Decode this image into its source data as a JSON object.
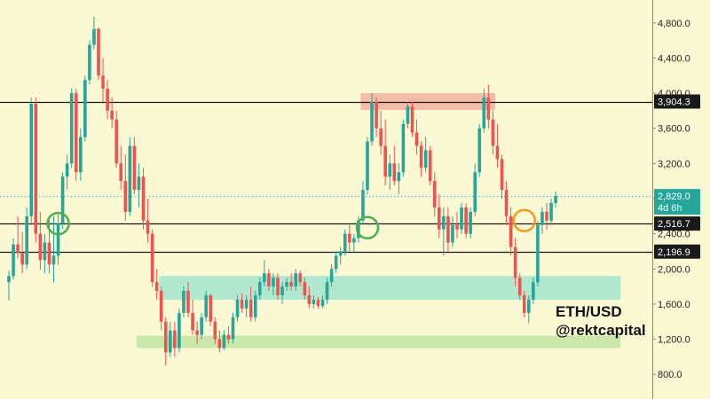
{
  "chart_data": {
    "type": "candlestick",
    "symbol": "ETH/USD",
    "author": "@rektcapital",
    "y_ticks": [
      800,
      1200,
      1600,
      2000,
      2400,
      2800,
      3200,
      3600,
      4000,
      4400,
      4800
    ],
    "y_tick_labels": [
      "800.0",
      "1,200.0",
      "1,600.0",
      "2,000.0",
      "2,400.0",
      "2,800.0",
      "3,200.0",
      "3,600.0",
      "4,000.0",
      "4,400.0",
      "4,800.0"
    ],
    "ylim": [
      520,
      5060
    ],
    "current_price": {
      "value": 2829.0,
      "label": "2,829.0",
      "countdown": "4d 6h"
    },
    "horizontal_levels": [
      {
        "value": 3904.3,
        "label": "3,904.3"
      },
      {
        "value": 2516.7,
        "label": "2,516.7"
      },
      {
        "value": 2196.9,
        "label": "2,196.9"
      }
    ],
    "zones": [
      {
        "type": "resistance",
        "from": 3810,
        "to": 4000,
        "start_index": 79,
        "end_index": 108,
        "color": "#f3b5a2"
      },
      {
        "type": "support",
        "from": 1650,
        "to": 1920,
        "start_index": 34,
        "end_index": 136,
        "color": "#a8e6cf"
      },
      {
        "type": "support",
        "from": 1100,
        "to": 1240,
        "start_index": 29,
        "end_index": 136,
        "color": "#c3e6a5"
      }
    ],
    "circles": [
      {
        "index": 11,
        "price": 2516.7,
        "color": "#4caf50"
      },
      {
        "index": 80,
        "price": 2470,
        "color": "#4caf50"
      },
      {
        "index": 115,
        "price": 2550,
        "color": "#f29b1f"
      }
    ],
    "candles": [
      {
        "o": 1850,
        "h": 1980,
        "l": 1640,
        "c": 1920
      },
      {
        "o": 1920,
        "h": 2350,
        "l": 1880,
        "c": 2280
      },
      {
        "o": 2280,
        "h": 2600,
        "l": 2120,
        "c": 2180
      },
      {
        "o": 2180,
        "h": 2420,
        "l": 1950,
        "c": 2050
      },
      {
        "o": 2050,
        "h": 2700,
        "l": 2000,
        "c": 2600
      },
      {
        "o": 2600,
        "h": 3950,
        "l": 2500,
        "c": 3880
      },
      {
        "o": 3880,
        "h": 3950,
        "l": 2300,
        "c": 2400
      },
      {
        "o": 2400,
        "h": 2650,
        "l": 1990,
        "c": 2100
      },
      {
        "o": 2100,
        "h": 2400,
        "l": 1950,
        "c": 2300
      },
      {
        "o": 2300,
        "h": 2550,
        "l": 1950,
        "c": 2050
      },
      {
        "o": 2050,
        "h": 2600,
        "l": 1850,
        "c": 2150
      },
      {
        "o": 2150,
        "h": 2620,
        "l": 2050,
        "c": 2520
      },
      {
        "o": 2520,
        "h": 3100,
        "l": 2450,
        "c": 3050
      },
      {
        "o": 3050,
        "h": 3300,
        "l": 2900,
        "c": 3200
      },
      {
        "o": 3200,
        "h": 4050,
        "l": 3150,
        "c": 4000
      },
      {
        "o": 4000,
        "h": 4050,
        "l": 3000,
        "c": 3100
      },
      {
        "o": 3100,
        "h": 3600,
        "l": 3000,
        "c": 3500
      },
      {
        "o": 3500,
        "h": 4200,
        "l": 3450,
        "c": 4150
      },
      {
        "o": 4150,
        "h": 4600,
        "l": 4100,
        "c": 4550
      },
      {
        "o": 4550,
        "h": 4870,
        "l": 4500,
        "c": 4730
      },
      {
        "o": 4730,
        "h": 4750,
        "l": 4150,
        "c": 4200
      },
      {
        "o": 4200,
        "h": 4400,
        "l": 3900,
        "c": 4050
      },
      {
        "o": 4050,
        "h": 4150,
        "l": 3700,
        "c": 3800
      },
      {
        "o": 3800,
        "h": 3950,
        "l": 3600,
        "c": 3700
      },
      {
        "o": 3700,
        "h": 3800,
        "l": 3150,
        "c": 3200
      },
      {
        "o": 3200,
        "h": 3400,
        "l": 2900,
        "c": 3000
      },
      {
        "o": 3000,
        "h": 3300,
        "l": 2550,
        "c": 2650
      },
      {
        "o": 2650,
        "h": 3500,
        "l": 2600,
        "c": 3400
      },
      {
        "o": 3400,
        "h": 3500,
        "l": 2850,
        "c": 2900
      },
      {
        "o": 2900,
        "h": 3200,
        "l": 2700,
        "c": 3050
      },
      {
        "o": 3050,
        "h": 3150,
        "l": 2450,
        "c": 2550
      },
      {
        "o": 2550,
        "h": 2800,
        "l": 2300,
        "c": 2400
      },
      {
        "o": 2400,
        "h": 2450,
        "l": 1800,
        "c": 1850
      },
      {
        "o": 1850,
        "h": 2000,
        "l": 1650,
        "c": 1750
      },
      {
        "o": 1750,
        "h": 1800,
        "l": 1300,
        "c": 1400
      },
      {
        "o": 1400,
        "h": 1450,
        "l": 900,
        "c": 1050
      },
      {
        "o": 1050,
        "h": 1400,
        "l": 1000,
        "c": 1300
      },
      {
        "o": 1300,
        "h": 1400,
        "l": 1000,
        "c": 1100
      },
      {
        "o": 1100,
        "h": 1550,
        "l": 1050,
        "c": 1500
      },
      {
        "o": 1500,
        "h": 1800,
        "l": 1450,
        "c": 1750
      },
      {
        "o": 1750,
        "h": 1850,
        "l": 1450,
        "c": 1500
      },
      {
        "o": 1500,
        "h": 1650,
        "l": 1250,
        "c": 1300
      },
      {
        "o": 1300,
        "h": 1400,
        "l": 1150,
        "c": 1250
      },
      {
        "o": 1250,
        "h": 1500,
        "l": 1200,
        "c": 1450
      },
      {
        "o": 1450,
        "h": 1750,
        "l": 1400,
        "c": 1700
      },
      {
        "o": 1700,
        "h": 1720,
        "l": 1350,
        "c": 1400
      },
      {
        "o": 1400,
        "h": 1450,
        "l": 1150,
        "c": 1200
      },
      {
        "o": 1200,
        "h": 1300,
        "l": 1050,
        "c": 1100
      },
      {
        "o": 1100,
        "h": 1300,
        "l": 1080,
        "c": 1250
      },
      {
        "o": 1250,
        "h": 1350,
        "l": 1150,
        "c": 1200
      },
      {
        "o": 1200,
        "h": 1500,
        "l": 1150,
        "c": 1450
      },
      {
        "o": 1450,
        "h": 1700,
        "l": 1400,
        "c": 1650
      },
      {
        "o": 1650,
        "h": 1720,
        "l": 1500,
        "c": 1550
      },
      {
        "o": 1550,
        "h": 1700,
        "l": 1450,
        "c": 1650
      },
      {
        "o": 1650,
        "h": 1800,
        "l": 1400,
        "c": 1450
      },
      {
        "o": 1450,
        "h": 1750,
        "l": 1400,
        "c": 1700
      },
      {
        "o": 1700,
        "h": 1900,
        "l": 1650,
        "c": 1850
      },
      {
        "o": 1850,
        "h": 2100,
        "l": 1800,
        "c": 1950
      },
      {
        "o": 1950,
        "h": 2000,
        "l": 1750,
        "c": 1800
      },
      {
        "o": 1800,
        "h": 1950,
        "l": 1700,
        "c": 1900
      },
      {
        "o": 1900,
        "h": 1950,
        "l": 1650,
        "c": 1700
      },
      {
        "o": 1700,
        "h": 1850,
        "l": 1600,
        "c": 1800
      },
      {
        "o": 1800,
        "h": 1900,
        "l": 1750,
        "c": 1850
      },
      {
        "o": 1850,
        "h": 1950,
        "l": 1750,
        "c": 1800
      },
      {
        "o": 1800,
        "h": 2000,
        "l": 1750,
        "c": 1950
      },
      {
        "o": 1950,
        "h": 1980,
        "l": 1800,
        "c": 1850
      },
      {
        "o": 1850,
        "h": 1900,
        "l": 1650,
        "c": 1700
      },
      {
        "o": 1700,
        "h": 1800,
        "l": 1550,
        "c": 1600
      },
      {
        "o": 1600,
        "h": 1700,
        "l": 1550,
        "c": 1650
      },
      {
        "o": 1650,
        "h": 1680,
        "l": 1550,
        "c": 1580
      },
      {
        "o": 1580,
        "h": 1700,
        "l": 1550,
        "c": 1650
      },
      {
        "o": 1650,
        "h": 1900,
        "l": 1600,
        "c": 1850
      },
      {
        "o": 1850,
        "h": 2050,
        "l": 1800,
        "c": 2000
      },
      {
        "o": 2000,
        "h": 2200,
        "l": 1950,
        "c": 2150
      },
      {
        "o": 2150,
        "h": 2250,
        "l": 2050,
        "c": 2200
      },
      {
        "o": 2200,
        "h": 2450,
        "l": 2150,
        "c": 2400
      },
      {
        "o": 2400,
        "h": 2500,
        "l": 2200,
        "c": 2300
      },
      {
        "o": 2300,
        "h": 2400,
        "l": 2200,
        "c": 2350
      },
      {
        "o": 2350,
        "h": 2600,
        "l": 2300,
        "c": 2550
      },
      {
        "o": 2550,
        "h": 3000,
        "l": 2500,
        "c": 2900
      },
      {
        "o": 2900,
        "h": 3500,
        "l": 2850,
        "c": 3450
      },
      {
        "o": 3450,
        "h": 4000,
        "l": 3400,
        "c": 3900
      },
      {
        "o": 3900,
        "h": 3950,
        "l": 3500,
        "c": 3600
      },
      {
        "o": 3600,
        "h": 3800,
        "l": 3300,
        "c": 3400
      },
      {
        "o": 3400,
        "h": 3700,
        "l": 2950,
        "c": 3050
      },
      {
        "o": 3050,
        "h": 3300,
        "l": 2900,
        "c": 3200
      },
      {
        "o": 3200,
        "h": 3400,
        "l": 2950,
        "c": 3000
      },
      {
        "o": 3000,
        "h": 3200,
        "l": 2850,
        "c": 3100
      },
      {
        "o": 3100,
        "h": 3700,
        "l": 3050,
        "c": 3650
      },
      {
        "o": 3650,
        "h": 3900,
        "l": 3600,
        "c": 3850
      },
      {
        "o": 3850,
        "h": 3900,
        "l": 3500,
        "c": 3550
      },
      {
        "o": 3550,
        "h": 3700,
        "l": 3300,
        "c": 3400
      },
      {
        "o": 3400,
        "h": 3450,
        "l": 3050,
        "c": 3150
      },
      {
        "o": 3150,
        "h": 3500,
        "l": 3100,
        "c": 3350
      },
      {
        "o": 3350,
        "h": 3400,
        "l": 2950,
        "c": 3000
      },
      {
        "o": 3000,
        "h": 3100,
        "l": 2600,
        "c": 2700
      },
      {
        "o": 2700,
        "h": 2850,
        "l": 2350,
        "c": 2450
      },
      {
        "o": 2450,
        "h": 2700,
        "l": 2150,
        "c": 2600
      },
      {
        "o": 2600,
        "h": 2700,
        "l": 2200,
        "c": 2300
      },
      {
        "o": 2300,
        "h": 2600,
        "l": 2250,
        "c": 2500
      },
      {
        "o": 2500,
        "h": 2650,
        "l": 2350,
        "c": 2450
      },
      {
        "o": 2450,
        "h": 2750,
        "l": 2400,
        "c": 2700
      },
      {
        "o": 2700,
        "h": 2750,
        "l": 2350,
        "c": 2400
      },
      {
        "o": 2400,
        "h": 2700,
        "l": 2350,
        "c": 2650
      },
      {
        "o": 2650,
        "h": 3200,
        "l": 2600,
        "c": 3100
      },
      {
        "o": 3100,
        "h": 3650,
        "l": 3050,
        "c": 3600
      },
      {
        "o": 3600,
        "h": 4050,
        "l": 3550,
        "c": 3950
      },
      {
        "o": 3950,
        "h": 4100,
        "l": 3600,
        "c": 3700
      },
      {
        "o": 3700,
        "h": 3800,
        "l": 3300,
        "c": 3400
      },
      {
        "o": 3400,
        "h": 3650,
        "l": 3150,
        "c": 3250
      },
      {
        "o": 3250,
        "h": 3300,
        "l": 2800,
        "c": 2900
      },
      {
        "o": 2900,
        "h": 3000,
        "l": 2500,
        "c": 2600
      },
      {
        "o": 2600,
        "h": 2700,
        "l": 2150,
        "c": 2250
      },
      {
        "o": 2250,
        "h": 2350,
        "l": 1800,
        "c": 1900
      },
      {
        "o": 1900,
        "h": 1950,
        "l": 1650,
        "c": 1700
      },
      {
        "o": 1700,
        "h": 1750,
        "l": 1450,
        "c": 1500
      },
      {
        "o": 1500,
        "h": 1700,
        "l": 1380,
        "c": 1650
      },
      {
        "o": 1650,
        "h": 1900,
        "l": 1600,
        "c": 1850
      },
      {
        "o": 1850,
        "h": 2550,
        "l": 1800,
        "c": 2500
      },
      {
        "o": 2500,
        "h": 2700,
        "l": 2400,
        "c": 2650
      },
      {
        "o": 2650,
        "h": 2750,
        "l": 2450,
        "c": 2550
      },
      {
        "o": 2550,
        "h": 2800,
        "l": 2500,
        "c": 2750
      },
      {
        "o": 2750,
        "h": 2880,
        "l": 2700,
        "c": 2829
      }
    ]
  }
}
